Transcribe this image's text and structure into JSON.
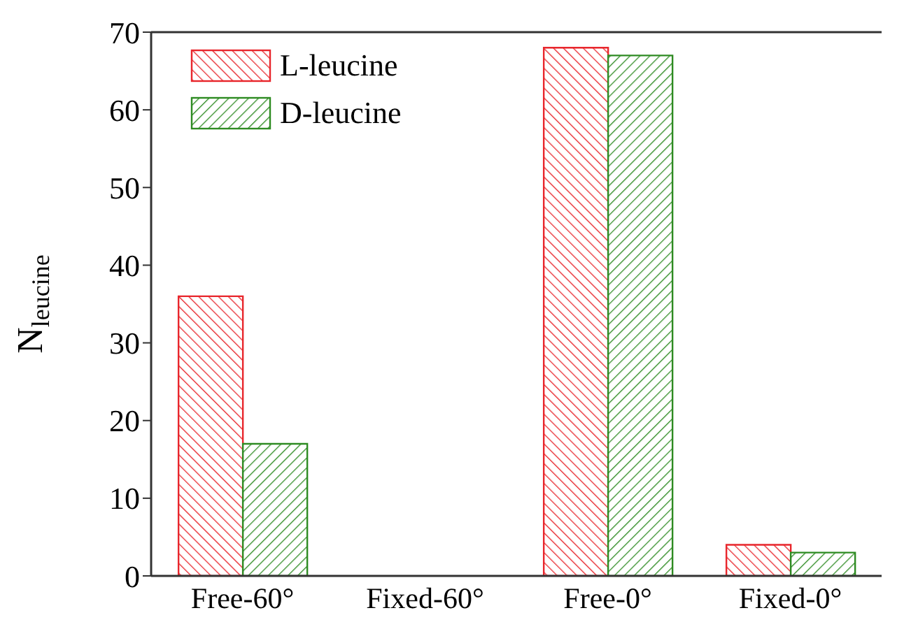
{
  "chart_data": {
    "type": "bar",
    "ylabel": "N$_{leucine}$",
    "categories": [
      "Free-60°",
      "Fixed-60°",
      "Free-0°",
      "Fixed-0°"
    ],
    "series": [
      {
        "name": "L-leucine",
        "color": "#e8262c",
        "values": [
          36,
          0,
          68,
          4
        ]
      },
      {
        "name": "D-leucine",
        "color": "#2e8b22",
        "values": [
          17,
          0,
          67,
          3
        ]
      }
    ],
    "ylim": [
      0,
      70
    ],
    "yticks": [
      0,
      10,
      20,
      30,
      40,
      50,
      60,
      70
    ],
    "legend": "top left"
  }
}
